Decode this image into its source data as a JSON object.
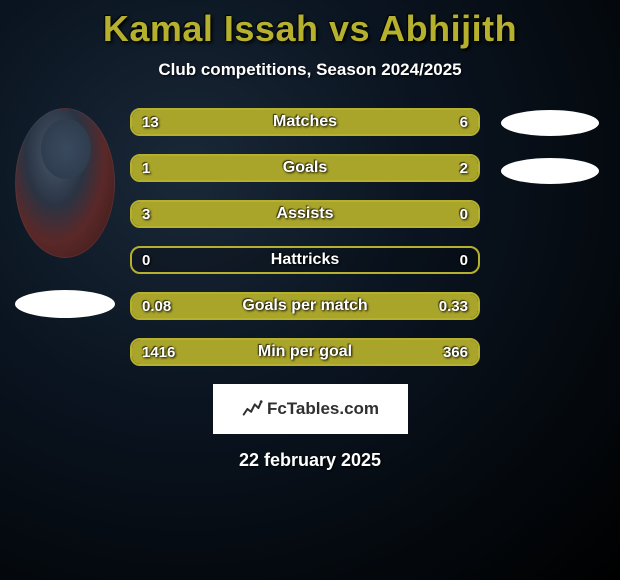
{
  "title": "Kamal Issah vs Abhijith",
  "subtitle": "Club competitions, Season 2024/2025",
  "date": "22 february 2025",
  "brand": "FcTables.com",
  "colors": {
    "accent": "#b5b02e",
    "fill": "#a9a42a",
    "background": "#000000",
    "text": "#ffffff"
  },
  "stats": [
    {
      "label": "Matches",
      "leftVal": "13",
      "rightVal": "6",
      "leftFillPct": 100,
      "rightFillPct": 0
    },
    {
      "label": "Goals",
      "leftVal": "1",
      "rightVal": "2",
      "leftFillPct": 0,
      "rightFillPct": 100
    },
    {
      "label": "Assists",
      "leftVal": "3",
      "rightVal": "0",
      "leftFillPct": 100,
      "rightFillPct": 0
    },
    {
      "label": "Hattricks",
      "leftVal": "0",
      "rightVal": "0",
      "leftFillPct": 0,
      "rightFillPct": 0
    },
    {
      "label": "Goals per match",
      "leftVal": "0.08",
      "rightVal": "0.33",
      "leftFillPct": 0,
      "rightFillPct": 100
    },
    {
      "label": "Min per goal",
      "leftVal": "1416",
      "rightVal": "366",
      "leftFillPct": 100,
      "rightFillPct": 0
    }
  ]
}
